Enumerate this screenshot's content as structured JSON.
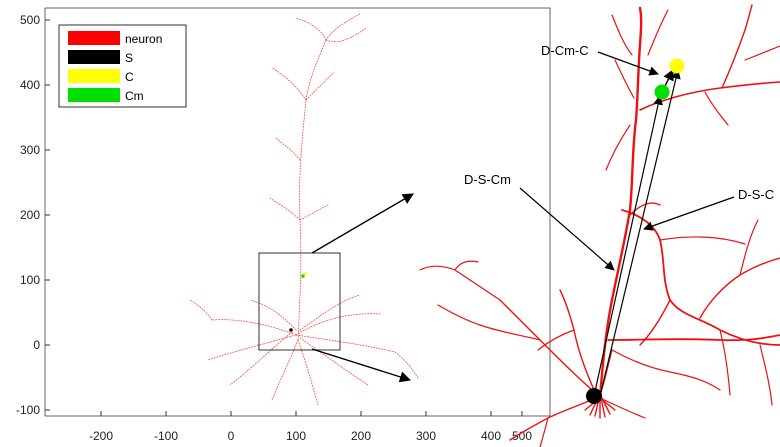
{
  "legend": {
    "items": [
      {
        "label": "neuron",
        "color": "#ff0000"
      },
      {
        "label": "S",
        "color": "#000000"
      },
      {
        "label": "C",
        "color": "#ffff00"
      },
      {
        "label": "Cm",
        "color": "#00e000"
      }
    ]
  },
  "axes": {
    "x_ticks": [
      "-200",
      "-100",
      "0",
      "100",
      "200",
      "300",
      "400",
      "500"
    ],
    "y_ticks": [
      "500",
      "400",
      "300",
      "200",
      "100",
      "0",
      "-100"
    ]
  },
  "annotations": {
    "d_cm_c": "D-Cm-C",
    "d_s_cm": "D-S-Cm",
    "d_s_c": "D-S-C"
  },
  "colors": {
    "neuron": "#ff0000",
    "soma": "#000000",
    "centroid": "#ffff00",
    "centroid_m": "#00e000"
  }
}
